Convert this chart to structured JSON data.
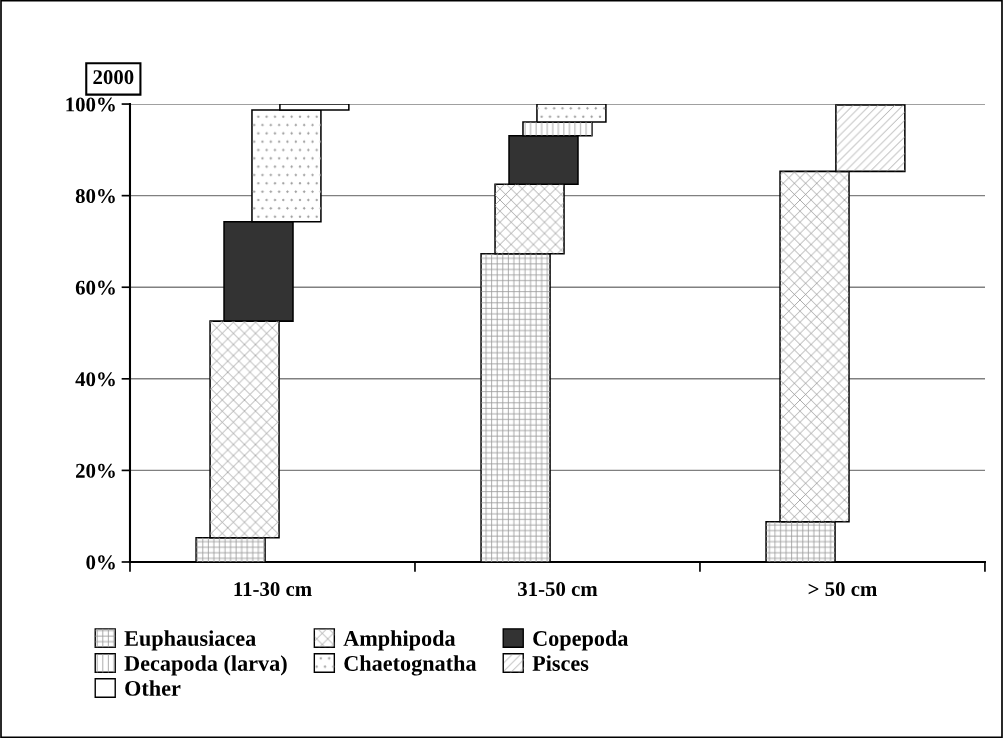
{
  "chart_data": {
    "type": "bar",
    "title": "2000",
    "stacked": true,
    "categories": [
      "11-30 cm",
      "31-50 cm",
      "> 50 cm"
    ],
    "series": [
      {
        "name": "Euphausiacea",
        "color": "#ffffff",
        "values": [
          5.3,
          67.3,
          8.8
        ]
      },
      {
        "name": "Amphipoda",
        "color": "#ffffff",
        "values": [
          47.3,
          15.2,
          76.5
        ]
      },
      {
        "name": "Copepoda",
        "color": "#333333",
        "values": [
          21.7,
          10.6,
          null
        ]
      },
      {
        "name": "Decapoda (larva)",
        "color": "#ffffff",
        "values": [
          null,
          3.0,
          null
        ]
      },
      {
        "name": "Chaetognatha",
        "color": "#ffffff",
        "values": [
          24.4,
          3.9,
          null
        ]
      },
      {
        "name": "Pisces",
        "color": "#ffffff",
        "values": [
          null,
          null,
          14.5
        ]
      },
      {
        "name": "Other",
        "color": "#ffffff",
        "values": [
          1.3,
          null,
          null
        ]
      }
    ],
    "ylim": [
      0,
      100
    ],
    "yticks": [
      {
        "value": 0,
        "label": "0%"
      },
      {
        "value": 20,
        "label": "20%"
      },
      {
        "value": 40,
        "label": "40%"
      },
      {
        "value": 60,
        "label": "60%"
      },
      {
        "value": 80,
        "label": "80%"
      },
      {
        "value": 100,
        "label": "100%"
      }
    ],
    "grid": "y",
    "legend": "bottom"
  }
}
